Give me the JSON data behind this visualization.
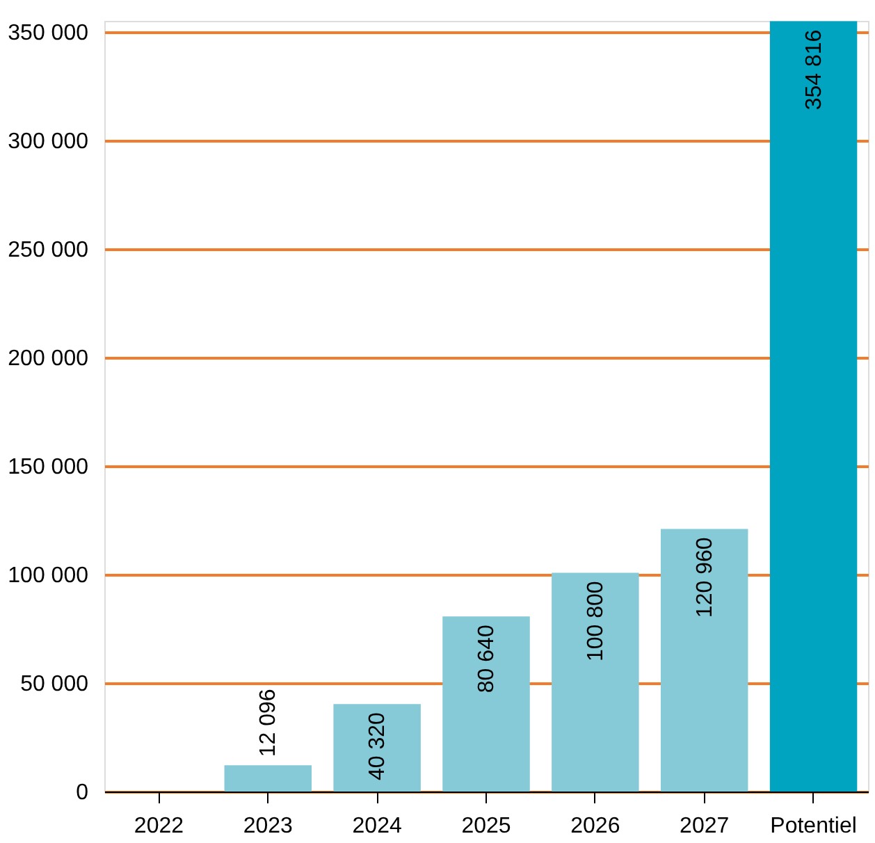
{
  "chart_data": {
    "type": "bar",
    "categories": [
      "2022",
      "2023",
      "2024",
      "2025",
      "2026",
      "2027",
      "Potentiel"
    ],
    "values": [
      null,
      12096,
      40320,
      80640,
      100800,
      120960,
      354816
    ],
    "colors": [
      "#86cad8",
      "#86cad8",
      "#86cad8",
      "#86cad8",
      "#86cad8",
      "#86cad8",
      "#00a3c0"
    ],
    "value_labels": [
      null,
      "12 096",
      "40 320",
      "80 640",
      "100 800",
      "120 960",
      "354 816"
    ],
    "ylim": [
      0,
      355000
    ],
    "yticks": [
      {
        "value": 0,
        "label": "0"
      },
      {
        "value": 50000,
        "label": "50 000"
      },
      {
        "value": 100000,
        "label": "100 000"
      },
      {
        "value": 150000,
        "label": "150 000"
      },
      {
        "value": 200000,
        "label": "200 000"
      },
      {
        "value": 250000,
        "label": "250 000"
      },
      {
        "value": 300000,
        "label": "300 000"
      },
      {
        "value": 350000,
        "label": "350 000"
      }
    ],
    "grid": "y"
  }
}
